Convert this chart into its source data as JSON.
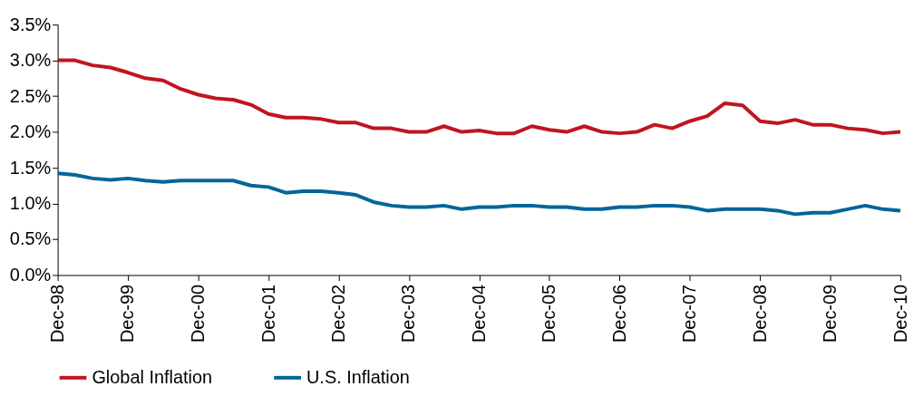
{
  "chart_data": {
    "type": "line",
    "x": [
      "1998-12",
      "1999-03",
      "1999-06",
      "1999-09",
      "1999-12",
      "2000-03",
      "2000-06",
      "2000-09",
      "2000-12",
      "2001-03",
      "2001-06",
      "2001-09",
      "2001-12",
      "2002-03",
      "2002-06",
      "2002-09",
      "2002-12",
      "2003-03",
      "2003-06",
      "2003-09",
      "2003-12",
      "2004-03",
      "2004-06",
      "2004-09",
      "2004-12",
      "2005-03",
      "2005-06",
      "2005-09",
      "2005-12",
      "2006-03",
      "2006-06",
      "2006-09",
      "2006-12",
      "2007-03",
      "2007-06",
      "2007-09",
      "2007-12",
      "2008-03",
      "2008-06",
      "2008-09",
      "2008-12",
      "2009-03",
      "2009-06",
      "2009-09",
      "2009-12",
      "2010-03",
      "2010-06",
      "2010-09",
      "2010-12"
    ],
    "series": [
      {
        "name": "Global Inflation",
        "color": "#c0151f",
        "values": [
          3.0,
          3.0,
          2.93,
          2.9,
          2.83,
          2.75,
          2.72,
          2.6,
          2.52,
          2.47,
          2.45,
          2.38,
          2.25,
          2.2,
          2.2,
          2.18,
          2.13,
          2.13,
          2.05,
          2.05,
          2.0,
          2.0,
          2.08,
          2.0,
          2.02,
          1.98,
          1.98,
          2.08,
          2.03,
          2.0,
          2.08,
          2.0,
          1.98,
          2.0,
          2.1,
          2.05,
          2.15,
          2.22,
          2.4,
          2.37,
          2.15,
          2.12,
          2.17,
          2.1,
          2.1,
          2.05,
          2.03,
          1.98,
          2.0
        ]
      },
      {
        "name": "U.S. Inflation",
        "color": "#006699",
        "values": [
          1.42,
          1.4,
          1.35,
          1.33,
          1.35,
          1.32,
          1.3,
          1.32,
          1.32,
          1.32,
          1.32,
          1.25,
          1.23,
          1.15,
          1.17,
          1.17,
          1.15,
          1.12,
          1.02,
          0.97,
          0.95,
          0.95,
          0.97,
          0.92,
          0.95,
          0.95,
          0.97,
          0.97,
          0.95,
          0.95,
          0.92,
          0.92,
          0.95,
          0.95,
          0.97,
          0.97,
          0.95,
          0.9,
          0.92,
          0.92,
          0.92,
          0.9,
          0.85,
          0.87,
          0.87,
          0.92,
          0.97,
          0.92,
          0.9
        ]
      }
    ],
    "xlim": [
      "1998-12",
      "2010-12"
    ],
    "xticks": [
      {
        "value": "1998-12",
        "label": "Dec-98"
      },
      {
        "value": "1999-12",
        "label": "Dec-99"
      },
      {
        "value": "2000-12",
        "label": "Dec-00"
      },
      {
        "value": "2001-12",
        "label": "Dec-01"
      },
      {
        "value": "2002-12",
        "label": "Dec-02"
      },
      {
        "value": "2003-12",
        "label": "Dec-03"
      },
      {
        "value": "2004-12",
        "label": "Dec-04"
      },
      {
        "value": "2005-12",
        "label": "Dec-05"
      },
      {
        "value": "2006-12",
        "label": "Dec-06"
      },
      {
        "value": "2007-12",
        "label": "Dec-07"
      },
      {
        "value": "2008-12",
        "label": "Dec-08"
      },
      {
        "value": "2009-12",
        "label": "Dec-09"
      },
      {
        "value": "2010-12",
        "label": "Dec-10"
      }
    ],
    "ylim": [
      0,
      3.5
    ],
    "yticks": [
      {
        "value": 0,
        "label": "0.0%"
      },
      {
        "value": 0.5,
        "label": "0.5%"
      },
      {
        "value": 1,
        "label": "1.0%"
      },
      {
        "value": 1.5,
        "label": "1.5%"
      },
      {
        "value": 2,
        "label": "2.0%"
      },
      {
        "value": 2.5,
        "label": "2.5%"
      },
      {
        "value": 3,
        "label": "3.0%"
      },
      {
        "value": 3.5,
        "label": "3.5%"
      }
    ],
    "grid": false,
    "legend": "bottom",
    "marker": "none",
    "line_style": "solid"
  }
}
